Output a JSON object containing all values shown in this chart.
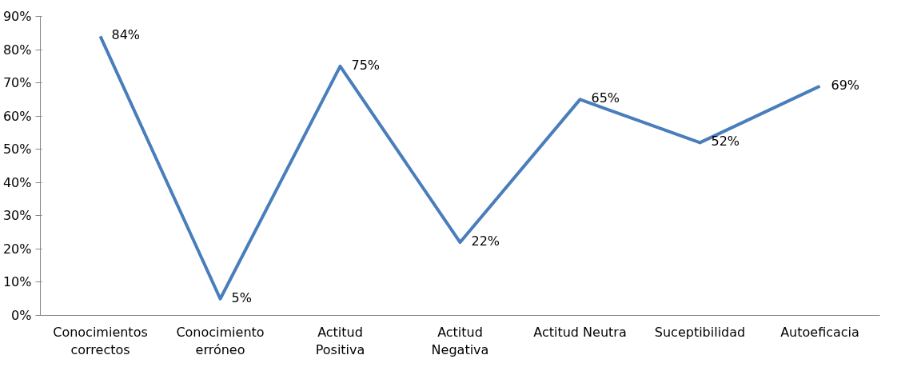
{
  "chart_data": {
    "type": "line",
    "categories": [
      "Conocimientos correctos",
      "Conocimiento erróneo",
      "Actitud Positiva",
      "Actitud Negativa",
      "Actitud Neutra",
      "Suceptibilidad",
      "Autoeficacia"
    ],
    "series": [
      {
        "color": "#4a7ebb",
        "values": [
          84,
          5,
          75,
          22,
          65,
          52,
          69
        ],
        "value_labels": [
          "84%",
          "5%",
          "75%",
          "22%",
          "65%",
          "52%",
          "69%"
        ]
      }
    ],
    "ylim": [
      0,
      90
    ],
    "yticks": [
      {
        "value": 0,
        "label": "0%"
      },
      {
        "value": 10,
        "label": "10%"
      },
      {
        "value": 20,
        "label": "20%"
      },
      {
        "value": 30,
        "label": "30%"
      },
      {
        "value": 40,
        "label": "40%"
      },
      {
        "value": 50,
        "label": "50%"
      },
      {
        "value": 60,
        "label": "60%"
      },
      {
        "value": 70,
        "label": "70%"
      },
      {
        "value": 80,
        "label": "80%"
      },
      {
        "value": 90,
        "label": "90%"
      }
    ],
    "grid": false,
    "marker": "none",
    "line_style": "solid"
  }
}
